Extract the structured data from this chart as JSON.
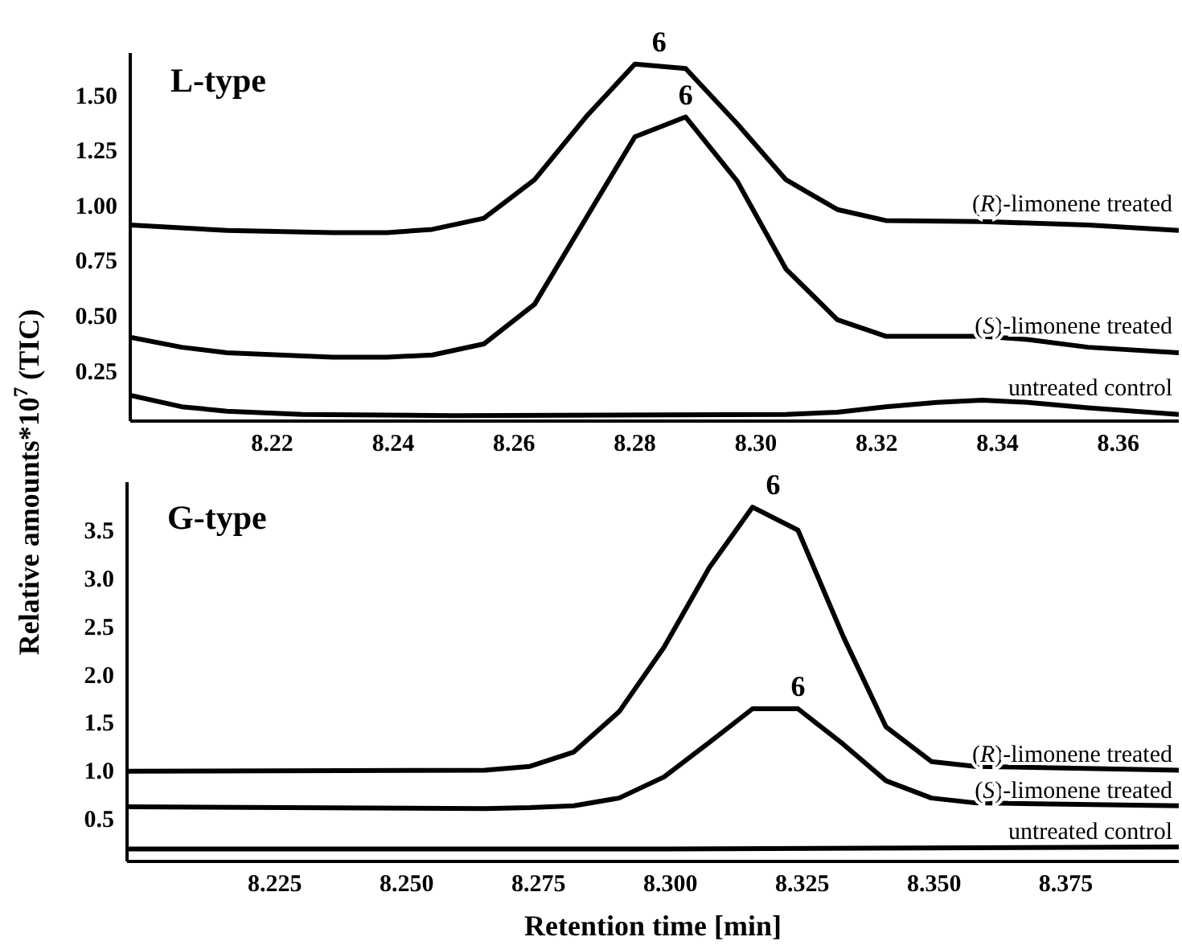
{
  "chart_data": [
    {
      "type": "line",
      "title": "L-type",
      "ylabel": "Relative amounts*10$^{7}$ (TIC)",
      "marker": "none",
      "xlim": [
        8.1965,
        8.37
      ],
      "xticks": [
        8.22,
        8.24,
        8.26,
        8.28,
        {
          "value": 8.3,
          "label": "8.30"
        },
        8.32,
        8.34,
        8.36
      ],
      "ylim": [
        0.02,
        1.69
      ],
      "yticks": [
        0.25,
        {
          "value": 0.5,
          "label": "0.50"
        },
        0.75,
        {
          "value": 1,
          "label": "1.00"
        },
        1.25,
        {
          "value": 1.5,
          "label": "1.50"
        }
      ],
      "series": [
        {
          "name": "(R)-limonene treated",
          "color": "#000000",
          "x": [
            8.1965,
            8.2125,
            8.23,
            8.239,
            8.2465,
            8.255,
            8.2634,
            8.2719,
            8.28,
            8.2884,
            8.2969,
            8.305,
            8.3135,
            8.3215,
            8.3375,
            8.355,
            8.37
          ],
          "values": [
            0.91,
            0.885,
            0.875,
            0.875,
            0.89,
            0.94,
            1.115,
            1.4,
            1.64,
            1.62,
            1.37,
            1.115,
            0.98,
            0.93,
            0.925,
            0.91,
            0.885
          ]
        },
        {
          "name": "(S)-limonene treated",
          "color": "#000000",
          "x": [
            8.1965,
            8.205,
            8.2125,
            8.23,
            8.239,
            8.2465,
            8.255,
            8.2634,
            8.2719,
            8.28,
            8.2884,
            8.2969,
            8.305,
            8.3135,
            8.3215,
            8.3375,
            8.345,
            8.355,
            8.37
          ],
          "values": [
            0.4,
            0.355,
            0.33,
            0.31,
            0.31,
            0.32,
            0.37,
            0.55,
            0.94,
            1.31,
            1.4,
            1.11,
            0.71,
            0.48,
            0.405,
            0.405,
            0.39,
            0.355,
            0.33
          ]
        },
        {
          "name": "untreated control",
          "color": "#000000",
          "x": [
            8.1965,
            8.205,
            8.2125,
            8.225,
            8.25,
            8.305,
            8.3135,
            8.3215,
            8.33,
            8.3375,
            8.345,
            8.355,
            8.37
          ],
          "values": [
            0.137,
            0.085,
            0.065,
            0.05,
            0.045,
            0.05,
            0.06,
            0.085,
            0.105,
            0.115,
            0.105,
            0.08,
            0.05
          ]
        }
      ],
      "annotations": [
        {
          "text": "6",
          "x": 8.284,
          "y": 1.64
        },
        {
          "text": "6",
          "x": 8.2884,
          "y": 1.4
        }
      ]
    },
    {
      "type": "line",
      "title": "G-type",
      "xlabel": "Retention time [min]",
      "marker": "none",
      "xlim": [
        8.197,
        8.3964
      ],
      "xticks": [
        8.225,
        {
          "value": 8.25,
          "label": "8.250"
        },
        8.275,
        {
          "value": 8.3,
          "label": "8.300"
        },
        8.325,
        {
          "value": 8.35,
          "label": "8.350"
        },
        8.375
      ],
      "ylim": [
        0.05,
        4.0
      ],
      "yticks": [
        0.5,
        {
          "value": 1,
          "label": "1.0"
        },
        1.5,
        {
          "value": 2,
          "label": "2.0"
        },
        2.5,
        {
          "value": 3,
          "label": "3.0"
        },
        3.5
      ],
      "series": [
        {
          "name": "(R)-limonene treated",
          "color": "#000000",
          "x": [
            8.197,
            8.2648,
            8.2734,
            8.2817,
            8.2903,
            8.2988,
            8.3074,
            8.3156,
            8.3242,
            8.3328,
            8.3409,
            8.3495,
            8.3578,
            8.3964
          ],
          "values": [
            0.99,
            1.0,
            1.04,
            1.19,
            1.61,
            2.28,
            3.11,
            3.74,
            3.5,
            2.39,
            1.45,
            1.09,
            1.04,
            1.0
          ]
        },
        {
          "name": "(S)-limonene treated",
          "color": "#000000",
          "x": [
            8.197,
            8.2648,
            8.2734,
            8.2817,
            8.2903,
            8.2988,
            8.3074,
            8.3156,
            8.3242,
            8.3328,
            8.3409,
            8.3495,
            8.3578,
            8.3964
          ],
          "values": [
            0.62,
            0.6,
            0.61,
            0.63,
            0.71,
            0.93,
            1.29,
            1.64,
            1.64,
            1.27,
            0.89,
            0.71,
            0.66,
            0.63
          ]
        },
        {
          "name": "untreated control",
          "color": "#000000",
          "x": [
            8.197,
            8.3,
            8.3964
          ],
          "values": [
            0.18,
            0.18,
            0.2
          ]
        }
      ],
      "annotations": [
        {
          "text": "6",
          "x": 8.3195,
          "y": 3.74
        },
        {
          "text": "6",
          "x": 8.3242,
          "y": 1.64
        }
      ]
    }
  ]
}
